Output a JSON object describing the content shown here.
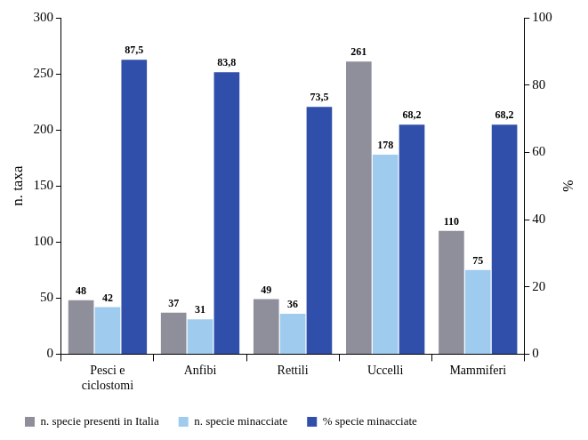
{
  "chart_data": {
    "type": "bar",
    "categories": [
      "Pesci e ciclostomi",
      "Anfibi",
      "Rettili",
      "Uccelli",
      "Mammiferi"
    ],
    "series": [
      {
        "name": "n. specie presenti in Italia",
        "color": "#8e8f9b",
        "values": [
          48,
          37,
          49,
          261,
          110
        ]
      },
      {
        "name": "n. specie minacciate",
        "color": "#9fcbef",
        "values": [
          42,
          31,
          36,
          178,
          75
        ]
      },
      {
        "name": "% specie minacciate",
        "color": "#2f4faa",
        "axis": "y2",
        "values": [
          87.5,
          83.8,
          73.5,
          68.2,
          68.2
        ],
        "value_labels": [
          "87,5",
          "83,8",
          "73,5",
          "68,2",
          "68,2"
        ]
      }
    ],
    "y_label": "n. taxa",
    "y2_label": "%",
    "ylim": [
      0,
      300
    ],
    "yticks": [
      0,
      50,
      100,
      150,
      200,
      250,
      300
    ],
    "y2lim": [
      0,
      100
    ],
    "y2ticks": [
      0,
      20,
      40,
      60,
      80,
      100
    ],
    "grid": false,
    "legend": "bottom-left",
    "data_labels": true
  }
}
